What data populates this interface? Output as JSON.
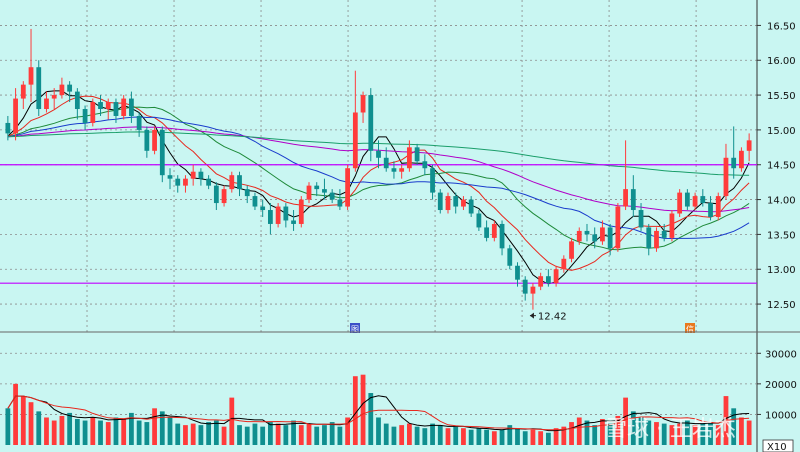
{
  "chart_data": [
    {
      "type": "candlestick",
      "panel": "price",
      "ylim": [
        12.3,
        16.75
      ],
      "y_ticks": [
        "16.50",
        "16.00",
        "15.50",
        "15.00",
        "14.50",
        "14.00",
        "13.50",
        "13.00",
        "12.50"
      ],
      "ohlc": [
        [
          15.1,
          15.2,
          14.85,
          14.95
        ],
        [
          14.95,
          15.6,
          14.85,
          15.45
        ],
        [
          15.45,
          15.7,
          15.3,
          15.65
        ],
        [
          15.65,
          16.45,
          15.4,
          15.9
        ],
        [
          15.9,
          16.0,
          15.2,
          15.3
        ],
        [
          15.3,
          15.55,
          15.25,
          15.45
        ],
        [
          15.45,
          15.6,
          15.3,
          15.5
        ],
        [
          15.5,
          15.75,
          15.45,
          15.65
        ],
        [
          15.65,
          15.7,
          15.4,
          15.55
        ],
        [
          15.55,
          15.6,
          15.15,
          15.3
        ],
        [
          15.3,
          15.35,
          15.0,
          15.1
        ],
        [
          15.1,
          15.45,
          15.05,
          15.4
        ],
        [
          15.4,
          15.5,
          15.2,
          15.3
        ],
        [
          15.3,
          15.45,
          15.15,
          15.4
        ],
        [
          15.4,
          15.45,
          15.1,
          15.2
        ],
        [
          15.2,
          15.5,
          15.15,
          15.45
        ],
        [
          15.45,
          15.55,
          15.1,
          15.2
        ],
        [
          15.2,
          15.25,
          14.9,
          15.0
        ],
        [
          15.0,
          15.05,
          14.6,
          14.7
        ],
        [
          14.7,
          15.05,
          14.65,
          15.0
        ],
        [
          15.0,
          15.05,
          14.25,
          14.35
        ],
        [
          14.35,
          14.45,
          14.15,
          14.3
        ],
        [
          14.3,
          14.35,
          14.1,
          14.2
        ],
        [
          14.2,
          14.35,
          14.1,
          14.3
        ],
        [
          14.3,
          14.5,
          14.2,
          14.4
        ],
        [
          14.4,
          14.45,
          14.2,
          14.3
        ],
        [
          14.3,
          14.35,
          14.15,
          14.2
        ],
        [
          14.2,
          14.25,
          13.85,
          13.95
        ],
        [
          13.95,
          14.2,
          13.9,
          14.15
        ],
        [
          14.15,
          14.4,
          14.1,
          14.35
        ],
        [
          14.35,
          14.4,
          14.05,
          14.15
        ],
        [
          14.15,
          14.2,
          13.95,
          14.05
        ],
        [
          14.05,
          14.1,
          13.85,
          13.9
        ],
        [
          13.9,
          14.0,
          13.75,
          13.85
        ],
        [
          13.85,
          13.95,
          13.5,
          13.65
        ],
        [
          13.65,
          13.95,
          13.6,
          13.9
        ],
        [
          13.9,
          13.95,
          13.6,
          13.7
        ],
        [
          13.7,
          13.85,
          13.55,
          13.65
        ],
        [
          13.65,
          14.05,
          13.6,
          14.0
        ],
        [
          14.0,
          14.25,
          13.95,
          14.2
        ],
        [
          14.2,
          14.25,
          14.05,
          14.15
        ],
        [
          14.15,
          14.3,
          14.0,
          14.1
        ],
        [
          14.1,
          14.15,
          13.95,
          14.0
        ],
        [
          14.0,
          14.15,
          13.85,
          13.9
        ],
        [
          13.9,
          14.5,
          13.85,
          14.45
        ],
        [
          14.45,
          15.85,
          14.4,
          15.25
        ],
        [
          15.25,
          15.55,
          15.1,
          15.5
        ],
        [
          15.5,
          15.6,
          14.55,
          14.7
        ],
        [
          14.7,
          14.85,
          14.45,
          14.6
        ],
        [
          14.6,
          14.75,
          14.4,
          14.45
        ],
        [
          14.45,
          14.55,
          14.3,
          14.4
        ],
        [
          14.4,
          14.5,
          14.3,
          14.45
        ],
        [
          14.45,
          14.85,
          14.4,
          14.75
        ],
        [
          14.75,
          14.8,
          14.5,
          14.55
        ],
        [
          14.55,
          14.65,
          14.35,
          14.45
        ],
        [
          14.45,
          14.5,
          14.0,
          14.1
        ],
        [
          14.1,
          14.15,
          13.8,
          13.85
        ],
        [
          13.85,
          14.1,
          13.8,
          14.05
        ],
        [
          14.05,
          14.1,
          13.8,
          13.9
        ],
        [
          13.9,
          14.05,
          13.85,
          14.0
        ],
        [
          14.0,
          14.05,
          13.75,
          13.8
        ],
        [
          13.8,
          13.85,
          13.55,
          13.6
        ],
        [
          13.6,
          13.7,
          13.4,
          13.45
        ],
        [
          13.45,
          13.7,
          13.4,
          13.65
        ],
        [
          13.65,
          13.7,
          13.2,
          13.3
        ],
        [
          13.3,
          13.35,
          13.0,
          13.05
        ],
        [
          13.05,
          13.1,
          12.75,
          12.85
        ],
        [
          12.85,
          12.9,
          12.55,
          12.65
        ],
        [
          12.65,
          12.8,
          12.42,
          12.75
        ],
        [
          12.75,
          12.95,
          12.7,
          12.9
        ],
        [
          12.9,
          13.0,
          12.75,
          12.8
        ],
        [
          12.8,
          13.05,
          12.75,
          13.0
        ],
        [
          13.0,
          13.2,
          12.95,
          13.15
        ],
        [
          13.15,
          13.45,
          13.1,
          13.4
        ],
        [
          13.4,
          13.6,
          13.35,
          13.55
        ],
        [
          13.55,
          13.65,
          13.4,
          13.5
        ],
        [
          13.5,
          13.6,
          13.3,
          13.4
        ],
        [
          13.4,
          13.7,
          13.35,
          13.6
        ],
        [
          13.6,
          13.65,
          13.2,
          13.3
        ],
        [
          13.3,
          13.95,
          13.25,
          13.9
        ],
        [
          13.9,
          14.85,
          13.85,
          14.15
        ],
        [
          14.15,
          14.35,
          13.75,
          13.85
        ],
        [
          13.85,
          13.95,
          13.55,
          13.6
        ],
        [
          13.6,
          13.65,
          13.2,
          13.3
        ],
        [
          13.3,
          13.6,
          13.25,
          13.55
        ],
        [
          13.55,
          13.65,
          13.4,
          13.45
        ],
        [
          13.45,
          13.85,
          13.4,
          13.8
        ],
        [
          13.8,
          14.15,
          13.75,
          14.1
        ],
        [
          14.1,
          14.15,
          13.85,
          13.9
        ],
        [
          13.9,
          14.1,
          13.85,
          14.05
        ],
        [
          14.05,
          14.15,
          13.9,
          13.95
        ],
        [
          13.95,
          14.05,
          13.7,
          13.75
        ],
        [
          13.75,
          14.1,
          13.7,
          14.05
        ],
        [
          14.05,
          14.8,
          14.0,
          14.6
        ],
        [
          14.6,
          15.05,
          14.3,
          14.45
        ],
        [
          14.45,
          14.75,
          14.4,
          14.7
        ],
        [
          14.7,
          14.95,
          14.55,
          14.85
        ]
      ],
      "moving_averages": [
        {
          "color": "#000000",
          "period": 5
        },
        {
          "color": "#e8281e",
          "period": 10
        },
        {
          "color": "#1f8a3a",
          "period": 20
        },
        {
          "color": "#1a3ccc",
          "period": 30
        },
        {
          "color": "#b000c8",
          "period": 60
        },
        {
          "color": "#1a9e6a",
          "period": 120
        }
      ],
      "horizontal_lines": [
        {
          "y": 14.5,
          "color": "#c000ff"
        },
        {
          "y": 12.8,
          "color": "#c000ff"
        }
      ],
      "annotations": [
        {
          "text": "12.42",
          "y": 12.42,
          "index": 68
        }
      ],
      "markers": [
        "图",
        "信"
      ],
      "up_color": "#ff3b3b",
      "down_color": "#0f8f8f"
    },
    {
      "type": "bar",
      "panel": "volume",
      "ylim": [
        0,
        35000
      ],
      "y_ticks": [
        "30000",
        "20000",
        "10000"
      ],
      "multiplier_label": "X10",
      "values": [
        12000,
        20000,
        16000,
        14000,
        11000,
        9000,
        8000,
        9500,
        10500,
        8500,
        8000,
        9000,
        8000,
        7500,
        9000,
        8500,
        10500,
        8000,
        7500,
        12000,
        11000,
        9000,
        7000,
        6500,
        7000,
        6500,
        7500,
        8000,
        6000,
        15500,
        6500,
        6000,
        7000,
        6000,
        7500,
        7000,
        6500,
        8000,
        6500,
        7000,
        6000,
        6500,
        7500,
        6000,
        9000,
        22500,
        23000,
        17000,
        9000,
        7000,
        6000,
        6500,
        7000,
        6000,
        5500,
        7000,
        6500,
        5500,
        6000,
        5500,
        5000,
        5500,
        5000,
        4500,
        5000,
        6500,
        5500,
        4500,
        5000,
        4500,
        4000,
        5500,
        6000,
        7500,
        9000,
        8000,
        6500,
        8500,
        7000,
        9500,
        15500,
        11000,
        9000,
        8000,
        7500,
        7000,
        6500,
        7000,
        8000,
        6500,
        7000,
        7500,
        6500,
        16000,
        12000,
        9000,
        8000
      ],
      "ma_lines": [
        {
          "color": "#000000"
        },
        {
          "color": "#e8281e"
        }
      ]
    }
  ],
  "watermark": {
    "text": "雪球 · 王岩杰"
  },
  "colors": {
    "background": "#c9f6f2",
    "grid": "#8a8a8a"
  }
}
